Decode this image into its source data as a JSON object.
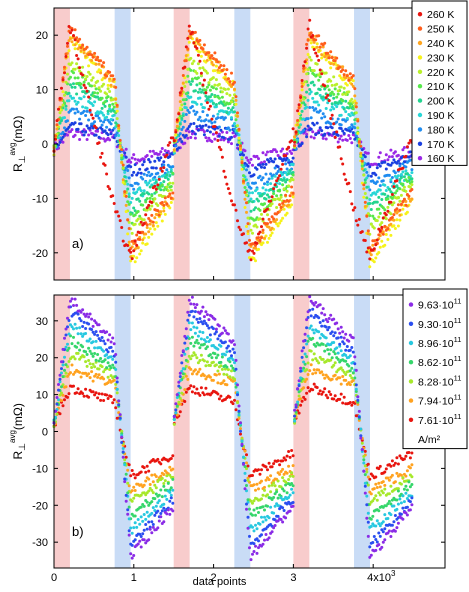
{
  "chart_data": [
    {
      "type": "scatter",
      "panel_label": "a)",
      "ylabel_main": "R",
      "ylabel_sub": "⊥",
      "ylabel_sup": "avg",
      "ylabel_unit": "(mΩ)",
      "ylim": [
        -25,
        25
      ],
      "yticks": [
        -20,
        -10,
        0,
        10,
        20
      ],
      "xlim": [
        0,
        4.9
      ],
      "grid": false,
      "legend": {
        "position": "top-right",
        "unit": ""
      },
      "shaded_regions": [
        {
          "x0": 0.0,
          "x1": 0.2,
          "color": "#f8cccc"
        },
        {
          "x0": 0.76,
          "x1": 0.96,
          "color": "#c9dcf6"
        },
        {
          "x0": 1.5,
          "x1": 1.7,
          "color": "#f8cccc"
        },
        {
          "x0": 2.26,
          "x1": 2.46,
          "color": "#c9dcf6"
        },
        {
          "x0": 3.0,
          "x1": 3.2,
          "color": "#f8cccc"
        },
        {
          "x0": 3.76,
          "x1": 3.96,
          "color": "#c9dcf6"
        }
      ],
      "series": [
        {
          "name": "260 K",
          "color": "#e8150f",
          "peak": 22,
          "trough": -21,
          "fast": true
        },
        {
          "name": "250 K",
          "color": "#ff5d1a",
          "peak": 21,
          "trough": -19
        },
        {
          "name": "240 K",
          "color": "#ffa51f",
          "peak": 20,
          "trough": -20
        },
        {
          "name": "230 K",
          "color": "#f6f21a",
          "peak": 19,
          "trough": -22
        },
        {
          "name": "220 K",
          "color": "#b9f02a",
          "peak": 15,
          "trough": -16
        },
        {
          "name": "210 K",
          "color": "#56e84a",
          "peak": 13,
          "trough": -14
        },
        {
          "name": "200 K",
          "color": "#22d48f",
          "peak": 11,
          "trough": -12
        },
        {
          "name": "190 K",
          "color": "#27d6d6",
          "peak": 9,
          "trough": -10
        },
        {
          "name": "180 K",
          "color": "#1f8cf0",
          "peak": 6,
          "trough": -8
        },
        {
          "name": "170 K",
          "color": "#1a3fe0",
          "peak": 3,
          "trough": -5
        },
        {
          "name": "160 K",
          "color": "#9a28e6",
          "peak": 2,
          "trough": -3
        }
      ]
    },
    {
      "type": "scatter",
      "panel_label": "b)",
      "ylabel_main": "R",
      "ylabel_sub": "⊥",
      "ylabel_sup": "avg",
      "ylabel_unit": "(mΩ)",
      "xlabel": "data points",
      "xticks": [
        0,
        1,
        2,
        3
      ],
      "xtick_last": "4x10",
      "xtick_exponent": "3",
      "ylim": [
        -37,
        37
      ],
      "yticks": [
        -30,
        -20,
        -10,
        0,
        10,
        20,
        30
      ],
      "xlim": [
        0,
        4.9
      ],
      "grid": false,
      "legend": {
        "position": "top-right",
        "unit": "A/m²"
      },
      "shaded_regions": [
        {
          "x0": 0.0,
          "x1": 0.2,
          "color": "#f8cccc"
        },
        {
          "x0": 0.76,
          "x1": 0.96,
          "color": "#c9dcf6"
        },
        {
          "x0": 1.5,
          "x1": 1.7,
          "color": "#f8cccc"
        },
        {
          "x0": 2.26,
          "x1": 2.46,
          "color": "#c9dcf6"
        },
        {
          "x0": 3.0,
          "x1": 3.2,
          "color": "#f8cccc"
        },
        {
          "x0": 3.76,
          "x1": 3.96,
          "color": "#c9dcf6"
        }
      ],
      "series": [
        {
          "name": "9.63·10",
          "exp": "11",
          "color": "#8a2be6",
          "peak": 36,
          "plateau": 24,
          "trough": -34,
          "recover": -20
        },
        {
          "name": "9.30·10",
          "exp": "11",
          "color": "#2a4ef0",
          "peak": 33,
          "plateau": 21,
          "trough": -31,
          "recover": -18
        },
        {
          "name": "8.96·10",
          "exp": "11",
          "color": "#27c8e0",
          "peak": 29,
          "plateau": 19,
          "trough": -27,
          "recover": -16
        },
        {
          "name": "8.62·10",
          "exp": "11",
          "color": "#35d66a",
          "peak": 25,
          "plateau": 17,
          "trough": -23,
          "recover": -14
        },
        {
          "name": "8.28·10",
          "exp": "11",
          "color": "#a6e82a",
          "peak": 21,
          "plateau": 15,
          "trough": -19,
          "recover": -12
        },
        {
          "name": "7.94·10",
          "exp": "11",
          "color": "#ffa21f",
          "peak": 17,
          "plateau": 13,
          "trough": -16,
          "recover": -10
        },
        {
          "name": "7.61·10",
          "exp": "11",
          "color": "#e8150f",
          "peak": 12,
          "plateau": 8,
          "trough": -12,
          "recover": -6
        }
      ]
    }
  ]
}
